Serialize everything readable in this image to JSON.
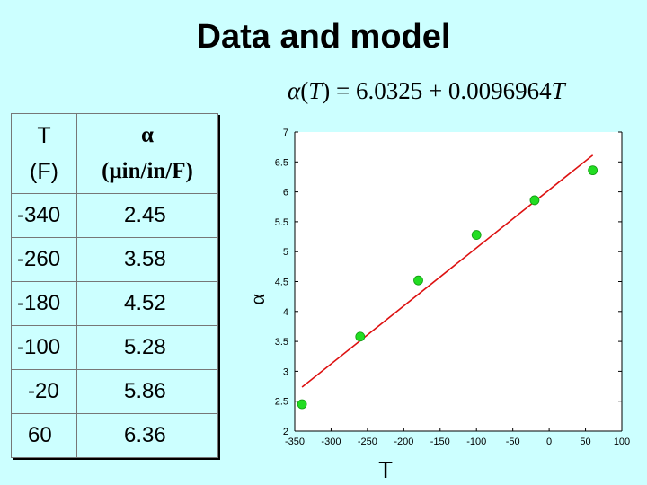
{
  "title": "Data and model",
  "equation": {
    "lhs_func": "α",
    "lhs_var": "T",
    "intercept": "6.0325",
    "slope": "0.0096964",
    "rhs_var": "T"
  },
  "table": {
    "header_t": [
      "T",
      "(F)"
    ],
    "header_a": [
      "α",
      "(μin/in/F)"
    ],
    "rows": [
      {
        "t": "-340",
        "a": "2.45"
      },
      {
        "t": "-260",
        "a": "3.58"
      },
      {
        "t": "-180",
        "a": "4.52"
      },
      {
        "t": "-100",
        "a": "5.28"
      },
      {
        "t": "-20",
        "a": "5.86"
      },
      {
        "t": "60",
        "a": "6.36"
      }
    ]
  },
  "chart_data": {
    "type": "scatter",
    "xlabel": "T",
    "ylabel": "α",
    "xlim": [
      -350,
      100
    ],
    "ylim": [
      2,
      7
    ],
    "xticks": [
      -350,
      -300,
      -250,
      -200,
      -150,
      -100,
      -50,
      0,
      50,
      100
    ],
    "yticks": [
      2,
      2.5,
      3,
      3.5,
      4,
      4.5,
      5,
      5.5,
      6,
      6.5,
      7
    ],
    "grid": false,
    "points": {
      "x": [
        -340,
        -260,
        -180,
        -100,
        -20,
        60
      ],
      "y": [
        2.45,
        3.58,
        4.52,
        5.28,
        5.86,
        6.36
      ],
      "color": "#22dd22"
    },
    "fit_line": {
      "intercept": 6.0325,
      "slope": 0.0096964,
      "x_range": [
        -340,
        60
      ],
      "color": "#dd1111"
    }
  }
}
